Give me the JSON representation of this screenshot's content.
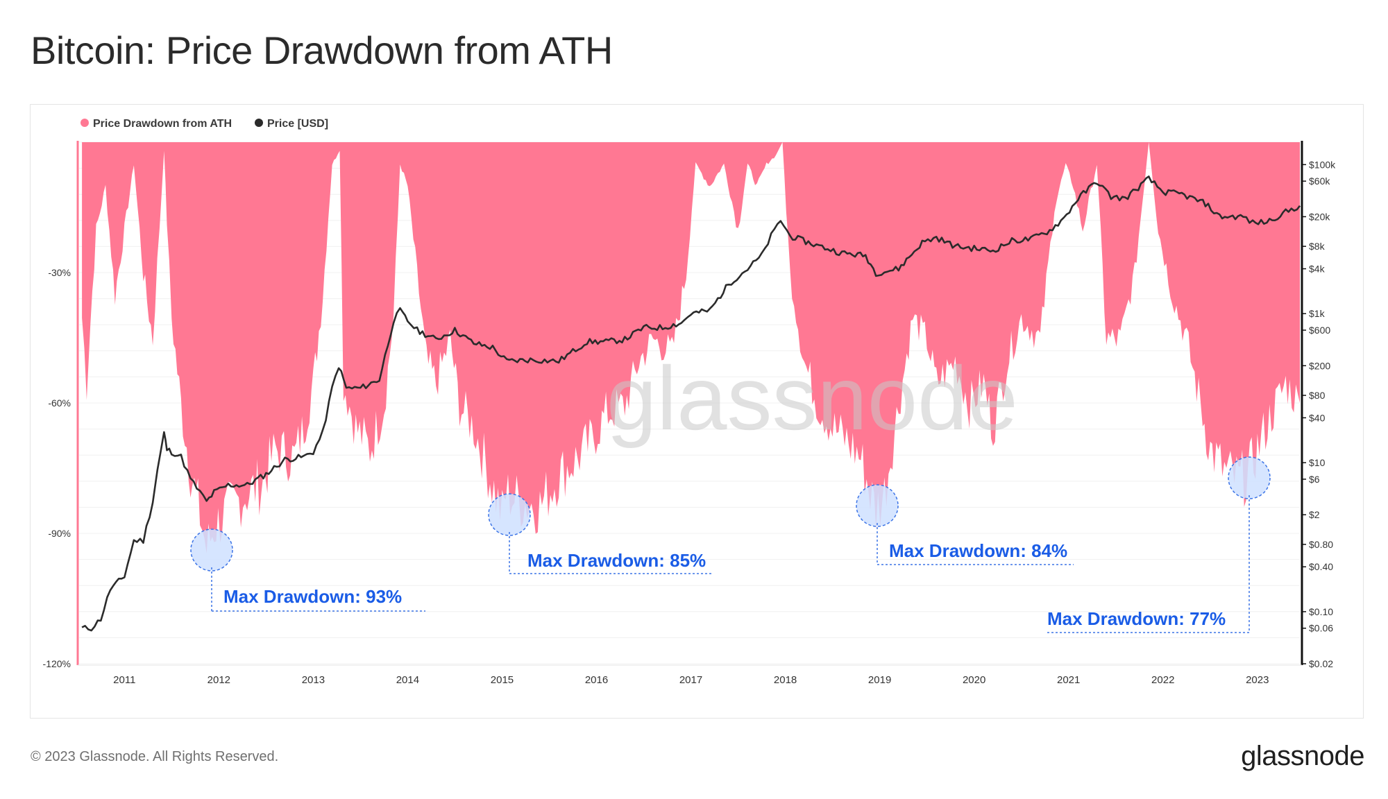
{
  "header": {
    "title": "Bitcoin: Price Drawdown from ATH"
  },
  "footer": {
    "copyright": "© 2023 Glassnode. All Rights Reserved.",
    "brand": "glassnode"
  },
  "watermark": "glassnode",
  "colors": {
    "drawdown": "#ff7893",
    "price": "#2b2b2b",
    "annotation": "#1a5ce6",
    "circle_fill": "#cfe0ff",
    "circle_stroke": "#3b73e6"
  },
  "chart_data": {
    "type": "area",
    "title": "Bitcoin: Price Drawdown from ATH",
    "legend": {
      "placement": "top-left",
      "entries": [
        "Price Drawdown from ATH",
        "Price [USD]"
      ]
    },
    "x_axis": {
      "ticks": [
        "2011",
        "2012",
        "2013",
        "2014",
        "2015",
        "2016",
        "2017",
        "2018",
        "2019",
        "2020",
        "2021",
        "2022",
        "2023"
      ],
      "range": [
        2010.52,
        2023.45
      ]
    },
    "y_left": {
      "ticks": [
        "-30%",
        "-60%",
        "-90%",
        "-120%"
      ],
      "tick_values": [
        -30,
        -60,
        -90,
        -120
      ],
      "range": [
        -120,
        0
      ]
    },
    "y_right": {
      "scale": "log",
      "ticks": [
        "$100k",
        "$60k",
        "$20k",
        "$8k",
        "$4k",
        "$1k",
        "$600",
        "$200",
        "$80",
        "$40",
        "$10",
        "$6",
        "$2",
        "$0.80",
        "$0.40",
        "$0.10",
        "$0.06",
        "$0.02"
      ],
      "tick_values": [
        100000,
        60000,
        20000,
        8000,
        4000,
        1000,
        600,
        200,
        80,
        40,
        10,
        6,
        2,
        0.8,
        0.4,
        0.1,
        0.06,
        0.02
      ],
      "range": [
        0.02,
        200000
      ]
    },
    "series": [
      {
        "name": "Price Drawdown from ATH",
        "unit": "%",
        "x": [
          2010.55,
          2010.6,
          2010.7,
          2010.8,
          2010.9,
          2011.0,
          2011.1,
          2011.2,
          2011.3,
          2011.42,
          2011.45,
          2011.5,
          2011.6,
          2011.7,
          2011.8,
          2011.87,
          2011.95,
          2012.1,
          2012.3,
          2012.45,
          2012.6,
          2012.8,
          2012.9,
          2013.0,
          2013.1,
          2013.2,
          2013.28,
          2013.32,
          2013.45,
          2013.6,
          2013.75,
          2013.85,
          2013.92,
          2014.0,
          2014.1,
          2014.2,
          2014.3,
          2014.45,
          2014.55,
          2014.7,
          2014.85,
          2015.0,
          2015.04,
          2015.2,
          2015.4,
          2015.6,
          2015.8,
          2015.95,
          2016.1,
          2016.3,
          2016.45,
          2016.6,
          2016.8,
          2016.95,
          2017.05,
          2017.2,
          2017.35,
          2017.5,
          2017.6,
          2017.7,
          2017.8,
          2017.9,
          2017.97,
          2018.05,
          2018.2,
          2018.35,
          2018.5,
          2018.65,
          2018.8,
          2018.9,
          2018.96,
          2019.05,
          2019.2,
          2019.35,
          2019.5,
          2019.6,
          2019.8,
          2019.95,
          2020.1,
          2020.2,
          2020.35,
          2020.5,
          2020.7,
          2020.85,
          2020.97,
          2021.05,
          2021.15,
          2021.3,
          2021.4,
          2021.55,
          2021.7,
          2021.85,
          2021.95,
          2022.1,
          2022.25,
          2022.4,
          2022.5,
          2022.65,
          2022.8,
          2022.9,
          2023.0,
          2023.15,
          2023.3,
          2023.45
        ],
        "values": [
          -40,
          -55,
          -20,
          -10,
          -35,
          -20,
          -5,
          -30,
          -45,
          -2,
          -18,
          -40,
          -60,
          -75,
          -85,
          -93,
          -88,
          -84,
          -80,
          -78,
          -70,
          -72,
          -65,
          -55,
          -35,
          -5,
          -2,
          -55,
          -65,
          -70,
          -60,
          -40,
          -5,
          -10,
          -30,
          -50,
          -55,
          -45,
          -60,
          -65,
          -75,
          -85,
          -80,
          -82,
          -83,
          -76,
          -72,
          -68,
          -62,
          -60,
          -50,
          -45,
          -48,
          -30,
          -5,
          -10,
          -5,
          -20,
          -5,
          -10,
          -5,
          -3,
          0,
          -30,
          -50,
          -60,
          -65,
          -68,
          -72,
          -80,
          -84,
          -80,
          -60,
          -40,
          -45,
          -55,
          -50,
          -60,
          -55,
          -65,
          -50,
          -40,
          -45,
          -15,
          -5,
          -10,
          -20,
          -5,
          -45,
          -45,
          -30,
          0,
          -20,
          -35,
          -45,
          -60,
          -70,
          -75,
          -77,
          -76,
          -70,
          -62,
          -55,
          -60
        ]
      },
      {
        "name": "Price [USD]",
        "unit": "USD",
        "scale": "log",
        "x": [
          2010.55,
          2010.65,
          2010.75,
          2010.85,
          2011.0,
          2011.1,
          2011.2,
          2011.3,
          2011.35,
          2011.42,
          2011.45,
          2011.5,
          2011.6,
          2011.7,
          2011.8,
          2011.87,
          2011.95,
          2012.1,
          2012.3,
          2012.5,
          2012.7,
          2012.9,
          2013.0,
          2013.1,
          2013.2,
          2013.27,
          2013.35,
          2013.5,
          2013.7,
          2013.85,
          2013.92,
          2014.0,
          2014.1,
          2014.3,
          2014.5,
          2014.7,
          2014.9,
          2015.05,
          2015.3,
          2015.6,
          2015.9,
          2016.1,
          2016.3,
          2016.5,
          2016.7,
          2016.9,
          2017.0,
          2017.2,
          2017.4,
          2017.6,
          2017.75,
          2017.85,
          2017.95,
          2018.05,
          2018.3,
          2018.6,
          2018.85,
          2018.96,
          2019.2,
          2019.45,
          2019.6,
          2019.8,
          2020.0,
          2020.2,
          2020.4,
          2020.6,
          2020.8,
          2020.95,
          2021.1,
          2021.3,
          2021.45,
          2021.6,
          2021.85,
          2022.0,
          2022.2,
          2022.45,
          2022.6,
          2022.85,
          2022.95,
          2023.1,
          2023.3,
          2023.45
        ],
        "values": [
          0.06,
          0.06,
          0.08,
          0.2,
          0.3,
          0.9,
          0.9,
          3,
          8,
          25,
          15,
          14,
          12,
          6,
          4,
          3,
          4,
          5,
          5,
          7,
          11,
          12,
          14,
          25,
          100,
          200,
          100,
          100,
          130,
          800,
          1100,
          800,
          600,
          450,
          600,
          400,
          350,
          230,
          240,
          230,
          420,
          420,
          450,
          650,
          650,
          750,
          1000,
          1100,
          2500,
          4000,
          6000,
          11000,
          18000,
          11000,
          8500,
          6500,
          6000,
          3500,
          4000,
          9000,
          10500,
          8000,
          7500,
          7000,
          9500,
          10000,
          13000,
          19000,
          35000,
          60000,
          37000,
          35000,
          65000,
          43000,
          40000,
          30000,
          20000,
          20000,
          16500,
          17000,
          23000,
          28000
        ]
      }
    ],
    "annotations": [
      {
        "text": "Max Drawdown: 93%",
        "x": 2011.87,
        "value": -93
      },
      {
        "text": "Max Drawdown: 85%",
        "x": 2015.04,
        "value": -85
      },
      {
        "text": "Max Drawdown: 84%",
        "x": 2018.96,
        "value": -84
      },
      {
        "text": "Max Drawdown: 77%",
        "x": 2022.87,
        "value": -77
      }
    ]
  }
}
